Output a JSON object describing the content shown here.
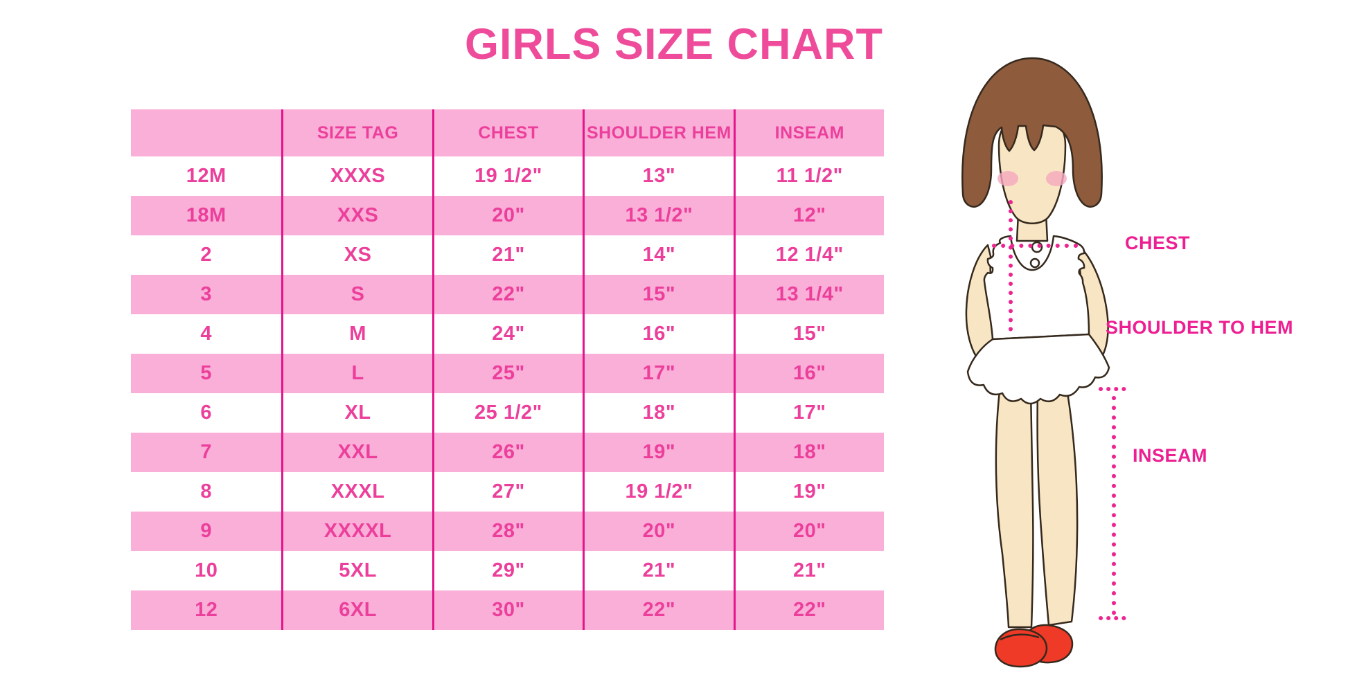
{
  "title": "GIRLS SIZE CHART",
  "colors": {
    "pink_bg": "#FAAFD8",
    "line": "#E2158A",
    "cell_text": "#EC3F9B",
    "title": "#EE4C9B",
    "label": "#ED1E91",
    "dots": "#ED2590",
    "hair": "#8E5B3D",
    "skin": "#F8E5C4",
    "blush": "#F5A8BE",
    "shoe": "#EF3A28"
  },
  "chart_data": {
    "type": "table",
    "title": "GIRLS SIZE CHART",
    "columns": [
      "",
      "SIZE TAG",
      "CHEST",
      "SHOULDER HEM",
      "INSEAM"
    ],
    "rows": [
      [
        "12M",
        "XXXS",
        "19 1/2\"",
        "13\"",
        "11 1/2\""
      ],
      [
        "18M",
        "XXS",
        "20\"",
        "13 1/2\"",
        "12\""
      ],
      [
        "2",
        "XS",
        "21\"",
        "14\"",
        "12 1/4\""
      ],
      [
        "3",
        "S",
        "22\"",
        "15\"",
        "13 1/4\""
      ],
      [
        "4",
        "M",
        "24\"",
        "16\"",
        "15\""
      ],
      [
        "5",
        "L",
        "25\"",
        "17\"",
        "16\""
      ],
      [
        "6",
        "XL",
        "25 1/2\"",
        "18\"",
        "17\""
      ],
      [
        "7",
        "XXL",
        "26\"",
        "19\"",
        "18\""
      ],
      [
        "8",
        "XXXL",
        "27\"",
        "19 1/2\"",
        "19\""
      ],
      [
        "9",
        "XXXXL",
        "28\"",
        "20\"",
        "20\""
      ],
      [
        "10",
        "5XL",
        "29\"",
        "21\"",
        "21\""
      ],
      [
        "12",
        "6XL",
        "30\"",
        "22\"",
        "22\""
      ]
    ],
    "layout": {
      "striping": "alternating white and pink rows, pink header, magenta column dividers"
    }
  },
  "figure": {
    "labels": {
      "chest": "CHEST",
      "shoulder_to_hem": "SHOULDER TO HEM",
      "inseam": "INSEAM"
    }
  }
}
